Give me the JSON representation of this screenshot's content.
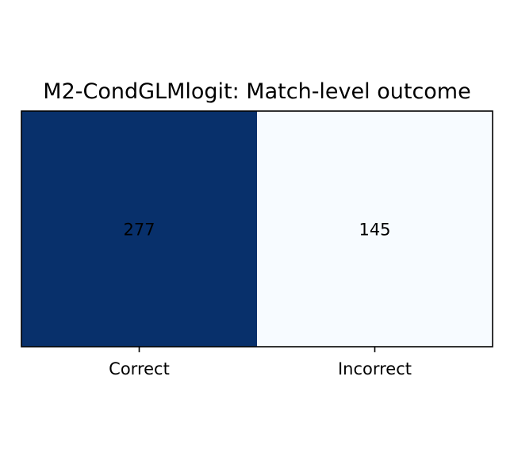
{
  "chart_data": {
    "type": "heatmap",
    "title": "M2-CondGLMlogit: Match-level outcome",
    "categories": [
      "Correct",
      "Incorrect"
    ],
    "values": [
      277,
      145
    ],
    "colormap": "Blues",
    "colors": {
      "high": "#08306b",
      "low": "#f7fbff",
      "text": "#000000",
      "frame": "#000000"
    },
    "grid": false,
    "legend": "none"
  }
}
